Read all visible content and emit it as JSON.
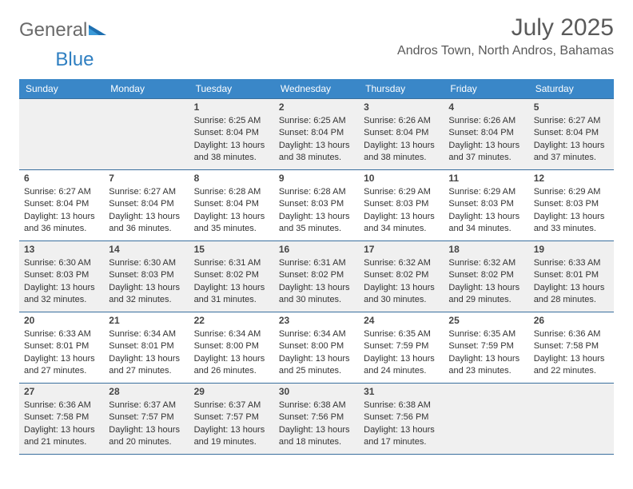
{
  "brand": {
    "word1": "General",
    "word2": "Blue"
  },
  "title": "July 2025",
  "location": "Andros Town, North Andros, Bahamas",
  "colors": {
    "header_bg": "#3a87c8",
    "header_text": "#ffffff",
    "rule": "#3a6f9e",
    "shade": "#f0f0f0",
    "page_bg": "#ffffff",
    "title_color": "#5a5a5a",
    "logo_gray": "#6a6a6a",
    "logo_blue": "#2f7fc1"
  },
  "day_names": [
    "Sunday",
    "Monday",
    "Tuesday",
    "Wednesday",
    "Thursday",
    "Friday",
    "Saturday"
  ],
  "weeks": [
    [
      {
        "num": "",
        "sunrise": "",
        "sunset": "",
        "daylight": ""
      },
      {
        "num": "",
        "sunrise": "",
        "sunset": "",
        "daylight": ""
      },
      {
        "num": "1",
        "sunrise": "6:25 AM",
        "sunset": "8:04 PM",
        "daylight": "13 hours and 38 minutes."
      },
      {
        "num": "2",
        "sunrise": "6:25 AM",
        "sunset": "8:04 PM",
        "daylight": "13 hours and 38 minutes."
      },
      {
        "num": "3",
        "sunrise": "6:26 AM",
        "sunset": "8:04 PM",
        "daylight": "13 hours and 38 minutes."
      },
      {
        "num": "4",
        "sunrise": "6:26 AM",
        "sunset": "8:04 PM",
        "daylight": "13 hours and 37 minutes."
      },
      {
        "num": "5",
        "sunrise": "6:27 AM",
        "sunset": "8:04 PM",
        "daylight": "13 hours and 37 minutes."
      }
    ],
    [
      {
        "num": "6",
        "sunrise": "6:27 AM",
        "sunset": "8:04 PM",
        "daylight": "13 hours and 36 minutes."
      },
      {
        "num": "7",
        "sunrise": "6:27 AM",
        "sunset": "8:04 PM",
        "daylight": "13 hours and 36 minutes."
      },
      {
        "num": "8",
        "sunrise": "6:28 AM",
        "sunset": "8:04 PM",
        "daylight": "13 hours and 35 minutes."
      },
      {
        "num": "9",
        "sunrise": "6:28 AM",
        "sunset": "8:03 PM",
        "daylight": "13 hours and 35 minutes."
      },
      {
        "num": "10",
        "sunrise": "6:29 AM",
        "sunset": "8:03 PM",
        "daylight": "13 hours and 34 minutes."
      },
      {
        "num": "11",
        "sunrise": "6:29 AM",
        "sunset": "8:03 PM",
        "daylight": "13 hours and 34 minutes."
      },
      {
        "num": "12",
        "sunrise": "6:29 AM",
        "sunset": "8:03 PM",
        "daylight": "13 hours and 33 minutes."
      }
    ],
    [
      {
        "num": "13",
        "sunrise": "6:30 AM",
        "sunset": "8:03 PM",
        "daylight": "13 hours and 32 minutes."
      },
      {
        "num": "14",
        "sunrise": "6:30 AM",
        "sunset": "8:03 PM",
        "daylight": "13 hours and 32 minutes."
      },
      {
        "num": "15",
        "sunrise": "6:31 AM",
        "sunset": "8:02 PM",
        "daylight": "13 hours and 31 minutes."
      },
      {
        "num": "16",
        "sunrise": "6:31 AM",
        "sunset": "8:02 PM",
        "daylight": "13 hours and 30 minutes."
      },
      {
        "num": "17",
        "sunrise": "6:32 AM",
        "sunset": "8:02 PM",
        "daylight": "13 hours and 30 minutes."
      },
      {
        "num": "18",
        "sunrise": "6:32 AM",
        "sunset": "8:02 PM",
        "daylight": "13 hours and 29 minutes."
      },
      {
        "num": "19",
        "sunrise": "6:33 AM",
        "sunset": "8:01 PM",
        "daylight": "13 hours and 28 minutes."
      }
    ],
    [
      {
        "num": "20",
        "sunrise": "6:33 AM",
        "sunset": "8:01 PM",
        "daylight": "13 hours and 27 minutes."
      },
      {
        "num": "21",
        "sunrise": "6:34 AM",
        "sunset": "8:01 PM",
        "daylight": "13 hours and 27 minutes."
      },
      {
        "num": "22",
        "sunrise": "6:34 AM",
        "sunset": "8:00 PM",
        "daylight": "13 hours and 26 minutes."
      },
      {
        "num": "23",
        "sunrise": "6:34 AM",
        "sunset": "8:00 PM",
        "daylight": "13 hours and 25 minutes."
      },
      {
        "num": "24",
        "sunrise": "6:35 AM",
        "sunset": "7:59 PM",
        "daylight": "13 hours and 24 minutes."
      },
      {
        "num": "25",
        "sunrise": "6:35 AM",
        "sunset": "7:59 PM",
        "daylight": "13 hours and 23 minutes."
      },
      {
        "num": "26",
        "sunrise": "6:36 AM",
        "sunset": "7:58 PM",
        "daylight": "13 hours and 22 minutes."
      }
    ],
    [
      {
        "num": "27",
        "sunrise": "6:36 AM",
        "sunset": "7:58 PM",
        "daylight": "13 hours and 21 minutes."
      },
      {
        "num": "28",
        "sunrise": "6:37 AM",
        "sunset": "7:57 PM",
        "daylight": "13 hours and 20 minutes."
      },
      {
        "num": "29",
        "sunrise": "6:37 AM",
        "sunset": "7:57 PM",
        "daylight": "13 hours and 19 minutes."
      },
      {
        "num": "30",
        "sunrise": "6:38 AM",
        "sunset": "7:56 PM",
        "daylight": "13 hours and 18 minutes."
      },
      {
        "num": "31",
        "sunrise": "6:38 AM",
        "sunset": "7:56 PM",
        "daylight": "13 hours and 17 minutes."
      },
      {
        "num": "",
        "sunrise": "",
        "sunset": "",
        "daylight": ""
      },
      {
        "num": "",
        "sunrise": "",
        "sunset": "",
        "daylight": ""
      }
    ]
  ],
  "labels": {
    "sunrise": "Sunrise: ",
    "sunset": "Sunset: ",
    "daylight": "Daylight: "
  }
}
